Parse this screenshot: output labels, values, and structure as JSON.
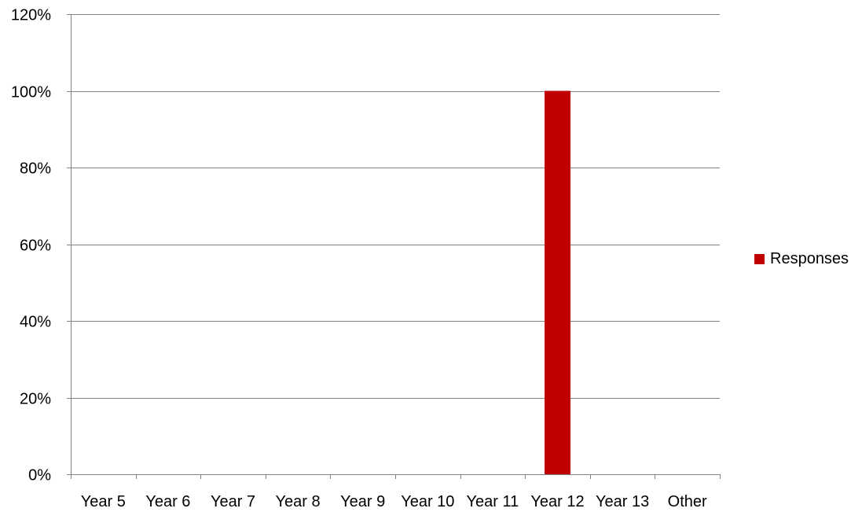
{
  "chart_data": {
    "type": "bar",
    "categories": [
      "Year 5",
      "Year 6",
      "Year 7",
      "Year 8",
      "Year 9",
      "Year 10",
      "Year 11",
      "Year 12",
      "Year 13",
      "Other"
    ],
    "series": [
      {
        "name": "Responses",
        "values": [
          0,
          0,
          0,
          0,
          0,
          0,
          0,
          100,
          0,
          0
        ],
        "color": "#c00000"
      }
    ],
    "y_ticks": [
      0,
      20,
      40,
      60,
      80,
      100,
      120
    ],
    "y_tick_labels": [
      "0%",
      "20%",
      "40%",
      "60%",
      "80%",
      "100%",
      "120%"
    ],
    "ylim": [
      0,
      120
    ],
    "y_unit": "%",
    "grid": true,
    "grid_color": "#808080",
    "axis_color": "#808080",
    "legend_position": "right"
  }
}
